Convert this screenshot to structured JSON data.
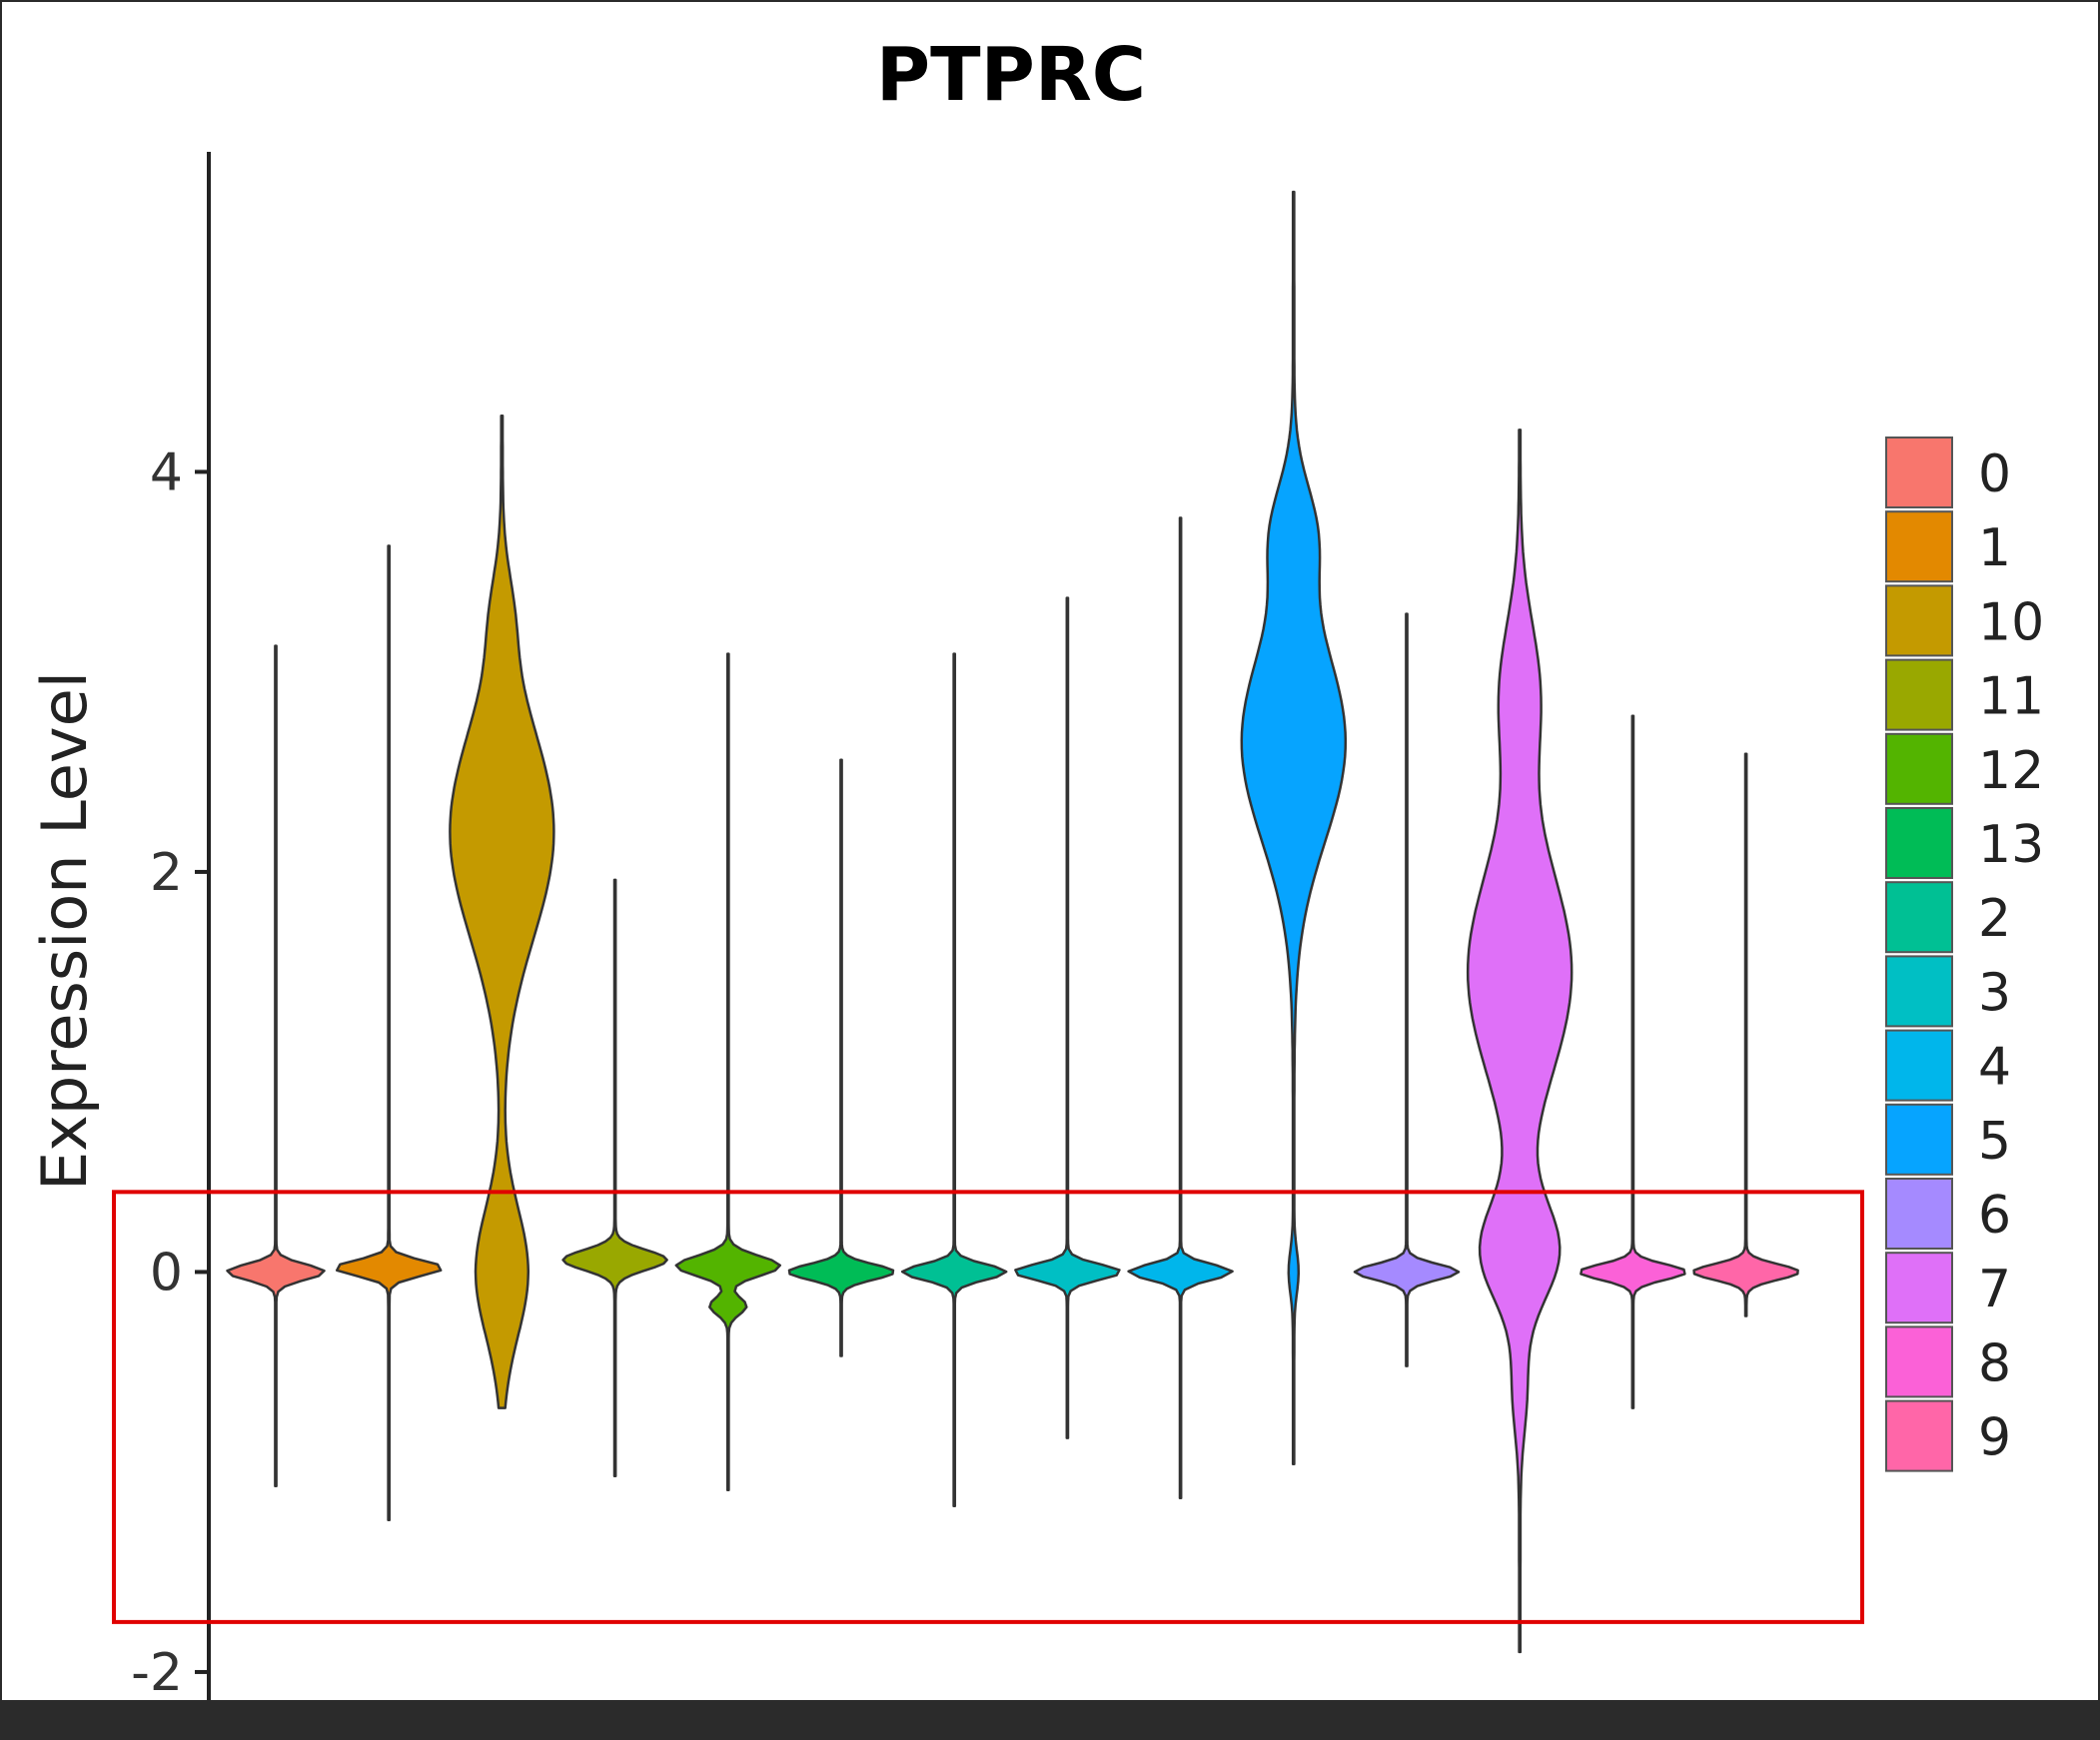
{
  "chart_data": {
    "type": "violin",
    "title": "PTPRC",
    "xlabel": "",
    "ylabel": "Expression Level",
    "ylim": [
      -2.2,
      5.6
    ],
    "yticks": [
      -2,
      0,
      2,
      4
    ],
    "ytick_labels": [
      "-2",
      "0",
      "2",
      "4"
    ],
    "legend_position": "right",
    "categories": [
      "0",
      "1",
      "10",
      "11",
      "12",
      "13",
      "2",
      "3",
      "4",
      "5",
      "6",
      "7",
      "8",
      "9"
    ],
    "colors": [
      "#F8766D",
      "#E38900",
      "#C49A00",
      "#99A800",
      "#53B400",
      "#00BC56",
      "#00C094",
      "#00BFC4",
      "#00B6EB",
      "#06A4FF",
      "#A58AFF",
      "#DF70F8",
      "#FB61D7",
      "#FF66A8"
    ],
    "series": [
      {
        "name": "0",
        "min": -1.07,
        "max": 3.13,
        "median": 0.0,
        "max_halfwidth": 0.42
      },
      {
        "name": "1",
        "min": -1.24,
        "max": 3.63,
        "median": 0.02,
        "max_halfwidth": 0.45
      },
      {
        "name": "10",
        "min": -0.68,
        "max": 4.28,
        "median": 2.2,
        "max_halfwidth": 0.45
      },
      {
        "name": "11",
        "min": -1.02,
        "max": 1.96,
        "median": 0.05,
        "max_halfwidth": 0.45
      },
      {
        "name": "12",
        "min": -1.09,
        "max": 3.09,
        "median": 0.03,
        "max_halfwidth": 0.45
      },
      {
        "name": "13",
        "min": -0.42,
        "max": 2.56,
        "median": 0.0,
        "max_halfwidth": 0.45
      },
      {
        "name": "2",
        "min": -1.17,
        "max": 3.09,
        "median": 0.0,
        "max_halfwidth": 0.45
      },
      {
        "name": "3",
        "min": -0.83,
        "max": 3.37,
        "median": 0.0,
        "max_halfwidth": 0.45
      },
      {
        "name": "4",
        "min": -1.13,
        "max": 3.77,
        "median": 0.0,
        "max_halfwidth": 0.45
      },
      {
        "name": "5",
        "min": -0.96,
        "max": 5.4,
        "median": 2.65,
        "max_halfwidth": 0.45
      },
      {
        "name": "6",
        "min": -0.47,
        "max": 3.29,
        "median": 0.0,
        "max_halfwidth": 0.45
      },
      {
        "name": "7",
        "min": -1.9,
        "max": 4.21,
        "median": 1.5,
        "max_halfwidth": 0.45
      },
      {
        "name": "8",
        "min": -0.68,
        "max": 2.78,
        "median": 0.0,
        "max_halfwidth": 0.45
      },
      {
        "name": "9",
        "min": -0.22,
        "max": 2.59,
        "median": 0.0,
        "max_halfwidth": 0.45
      }
    ],
    "annotation": {
      "type": "highlight-box",
      "color": "#e00000",
      "y_range": [
        -1.75,
        0.4
      ]
    }
  }
}
